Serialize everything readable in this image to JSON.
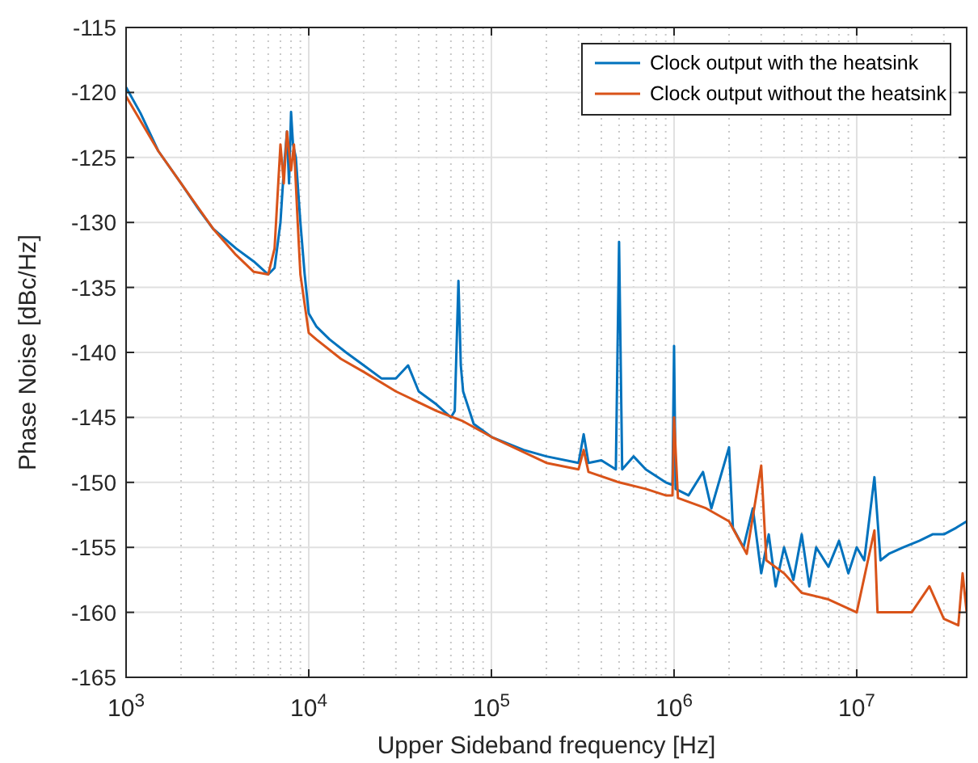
{
  "chart_data": {
    "type": "line",
    "xlabel": "Upper Sideband frequency [Hz]",
    "ylabel": "Phase Noise [dBc/Hz]",
    "log": "x",
    "grid": true,
    "legend": "top right",
    "line_style": "solid",
    "xlim": [
      1000,
      40000000
    ],
    "xticks": [
      {
        "value": 1000,
        "label": "10$^{3}$"
      },
      {
        "value": 10000,
        "label": "10$^{4}$"
      },
      {
        "value": 100000,
        "label": "10$^{5}$"
      },
      {
        "value": 1000000,
        "label": "10$^{6}$"
      },
      {
        "value": 10000000,
        "label": "10$^{7}$"
      }
    ],
    "ylim": [
      -165,
      -115
    ],
    "yticks": [
      -165,
      -160,
      -155,
      -150,
      -145,
      -140,
      -135,
      -130,
      -125,
      -120,
      -115
    ],
    "series": [
      {
        "name": "Clock output with the heatsink",
        "color": "#0072bd",
        "x": [
          1000,
          1200,
          1500,
          2000,
          2500,
          3000,
          4000,
          5000,
          6000,
          6500,
          7000,
          7300,
          7600,
          7800,
          8000,
          8200,
          8500,
          9000,
          9500,
          10000,
          11000,
          13000,
          16000,
          20000,
          25000,
          30000,
          35000,
          40000,
          50000,
          60000,
          63000,
          66000,
          68000,
          70000,
          80000,
          100000,
          150000,
          200000,
          300000,
          320000,
          340000,
          400000,
          480000,
          500000,
          520000,
          600000,
          700000,
          900000,
          980000,
          1000000,
          1020000,
          1200000,
          1440000,
          1600000,
          2000000,
          2100000,
          2400000,
          2700000,
          3000000,
          3300000,
          3600000,
          4000000,
          4500000,
          5000000,
          5500000,
          6000000,
          7000000,
          8000000,
          9000000,
          10000000,
          11000000,
          12500000,
          13500000,
          15000000,
          18000000,
          22000000,
          26000000,
          30000000,
          35000000,
          40000000
        ],
        "values": [
          -119.6,
          -121.6,
          -124.5,
          -127,
          -129,
          -130.5,
          -132,
          -133,
          -134,
          -133.5,
          -130,
          -126,
          -123,
          -127,
          -121.5,
          -124,
          -125,
          -130,
          -134,
          -137,
          -138,
          -139,
          -140,
          -141,
          -142,
          -142,
          -141,
          -143,
          -144,
          -145,
          -144.5,
          -134.5,
          -141,
          -143,
          -145.5,
          -146.5,
          -147.5,
          -148,
          -148.5,
          -146.3,
          -148.5,
          -148.3,
          -149,
          -131.5,
          -149,
          -148,
          -149,
          -150,
          -150.2,
          -139.5,
          -150.5,
          -151,
          -149.2,
          -152,
          -147.3,
          -153.5,
          -155,
          -152,
          -157,
          -154,
          -158,
          -155,
          -157.5,
          -154,
          -158,
          -155,
          -156.5,
          -154.5,
          -157,
          -155,
          -156,
          -149.6,
          -156,
          -155.5,
          -155,
          -154.5,
          -154,
          -154,
          -153.5,
          -153
        ]
      },
      {
        "name": "Clock output without the heatsink",
        "color": "#d95319",
        "x": [
          1000,
          1500,
          2000,
          3000,
          4000,
          5000,
          6000,
          6500,
          7000,
          7300,
          7600,
          8000,
          8300,
          8700,
          9000,
          10000,
          11000,
          15000,
          20000,
          30000,
          50000,
          70000,
          100000,
          200000,
          300000,
          320000,
          340000,
          500000,
          700000,
          900000,
          980000,
          1000000,
          1050000,
          1500000,
          2000000,
          2500000,
          3000000,
          3200000,
          4000000,
          5000000,
          7000000,
          10000000,
          12500000,
          13000000,
          20000000,
          25000000,
          30000000,
          36000000,
          38000000,
          40000000
        ],
        "values": [
          -120.3,
          -124.5,
          -127,
          -130.5,
          -132.5,
          -133.8,
          -134,
          -132,
          -124,
          -127,
          -123,
          -126,
          -124,
          -130,
          -134,
          -138.5,
          -139,
          -140.5,
          -141.5,
          -143,
          -144.5,
          -145.3,
          -146.5,
          -148.5,
          -149,
          -147.5,
          -149.2,
          -150,
          -150.5,
          -151,
          -151,
          -145,
          -151.2,
          -152,
          -153,
          -155.5,
          -148.7,
          -156,
          -157,
          -158.5,
          -159,
          -160,
          -153.7,
          -160,
          -160,
          -158,
          -160.5,
          -161,
          -157,
          -160
        ]
      }
    ]
  }
}
